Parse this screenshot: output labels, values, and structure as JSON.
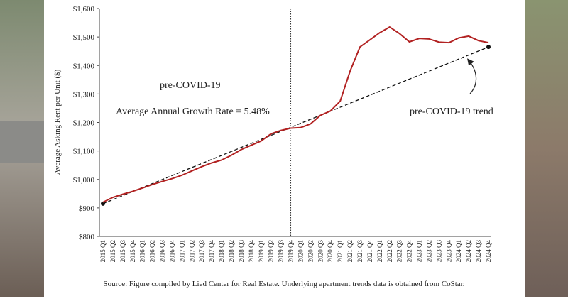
{
  "chart_data": {
    "type": "line",
    "y_axis_label": "Average Asking Rent per Unit ($)",
    "source": "Source: Figure compiled by Lied Center for Real Estate. Underlying apartment trends data is obtained from CoStar.",
    "annotations": [
      "pre-COVID-19",
      "Average Annual Growth Rate = 5.48%",
      "pre-COVID-19 trend"
    ],
    "categories": [
      "2015 Q1",
      "2015 Q2",
      "2015 Q3",
      "2015 Q4",
      "2016 Q1",
      "2016 Q2",
      "2016 Q3",
      "2016 Q4",
      "2017 Q1",
      "2017 Q2",
      "2017 Q3",
      "2017 Q4",
      "2018 Q1",
      "2018 Q2",
      "2018 Q3",
      "2018 Q4",
      "2019 Q1",
      "2019 Q2",
      "2019 Q3",
      "2019 Q4",
      "2020 Q1",
      "2020 Q2",
      "2020 Q3",
      "2020 Q4",
      "2021 Q1",
      "2021 Q2",
      "2021 Q3",
      "2021 Q4",
      "2022 Q1",
      "2022 Q2",
      "2022 Q3",
      "2022 Q4",
      "2023 Q1",
      "2023 Q2",
      "2023 Q3",
      "2023 Q4",
      "2024 Q1",
      "2024 Q2",
      "2024 Q3",
      "2024 Q4"
    ],
    "values": [
      920,
      937,
      948,
      958,
      970,
      982,
      993,
      1003,
      1015,
      1030,
      1045,
      1058,
      1068,
      1085,
      1105,
      1120,
      1135,
      1160,
      1172,
      1180,
      1182,
      1195,
      1225,
      1240,
      1275,
      1380,
      1465,
      1490,
      1515,
      1535,
      1512,
      1483,
      1495,
      1493,
      1482,
      1480,
      1497,
      1503,
      1487,
      1480
    ],
    "color": "#b22222",
    "trend": [
      915,
      1465
    ],
    "trend_color": "#111111",
    "marker_category": "2019 Q4",
    "ylim": [
      800,
      1600
    ],
    "yticks": [
      {
        "value": 800,
        "label": "$800"
      },
      {
        "value": 900,
        "label": "$900"
      },
      {
        "value": 1000,
        "label": "$1,000"
      },
      {
        "value": 1100,
        "label": "$1,100"
      },
      {
        "value": 1200,
        "label": "$1,200"
      },
      {
        "value": 1300,
        "label": "$1,300"
      },
      {
        "value": 1400,
        "label": "$1,400"
      },
      {
        "value": 1500,
        "label": "$1,500"
      },
      {
        "value": 1600,
        "label": "$1,600"
      }
    ]
  }
}
